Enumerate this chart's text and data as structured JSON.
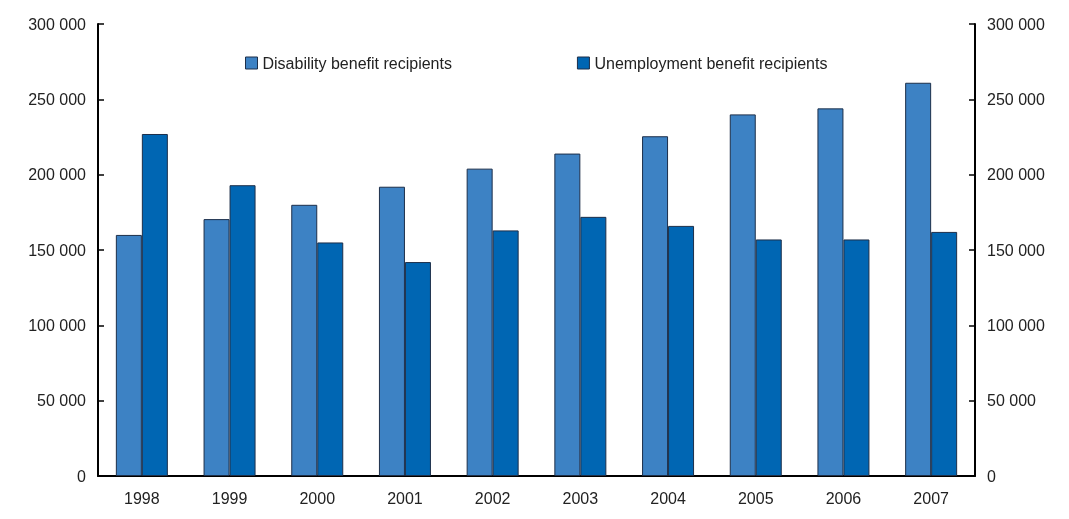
{
  "chart_data": {
    "type": "bar",
    "categories": [
      "1998",
      "1999",
      "2000",
      "2001",
      "2002",
      "2003",
      "2004",
      "2005",
      "2006",
      "2007"
    ],
    "series": [
      {
        "name": "Disability benefit recipients",
        "color": "#3d82c4",
        "values": [
          160000,
          170500,
          180000,
          192000,
          204000,
          214000,
          225500,
          240000,
          244000,
          261000
        ]
      },
      {
        "name": "Unemployment benefit recipients",
        "color": "#0066b3",
        "values": [
          227000,
          193000,
          155000,
          142000,
          163000,
          172000,
          166000,
          157000,
          157000,
          162000
        ]
      }
    ],
    "ylim": [
      0,
      300000
    ],
    "yticks": [
      0,
      {
        "value": 50000,
        "label": "50 000"
      },
      {
        "value": 100000,
        "label": "100 000"
      },
      {
        "value": 150000,
        "label": "150 000"
      },
      {
        "value": 200000,
        "label": "200 000"
      },
      {
        "value": 250000,
        "label": "250 000"
      },
      {
        "value": 300000,
        "label": "300 000"
      }
    ],
    "y2lim": [
      0,
      300000
    ],
    "y2ticks": [
      0,
      {
        "value": 50000,
        "label": "50 000"
      },
      {
        "value": 100000,
        "label": "100 000"
      },
      {
        "value": 150000,
        "label": "150 000"
      },
      {
        "value": 200000,
        "label": "200 000"
      },
      {
        "value": 250000,
        "label": "250 000"
      },
      {
        "value": 300000,
        "label": "300 000"
      }
    ],
    "grid": false,
    "legend": "top"
  }
}
